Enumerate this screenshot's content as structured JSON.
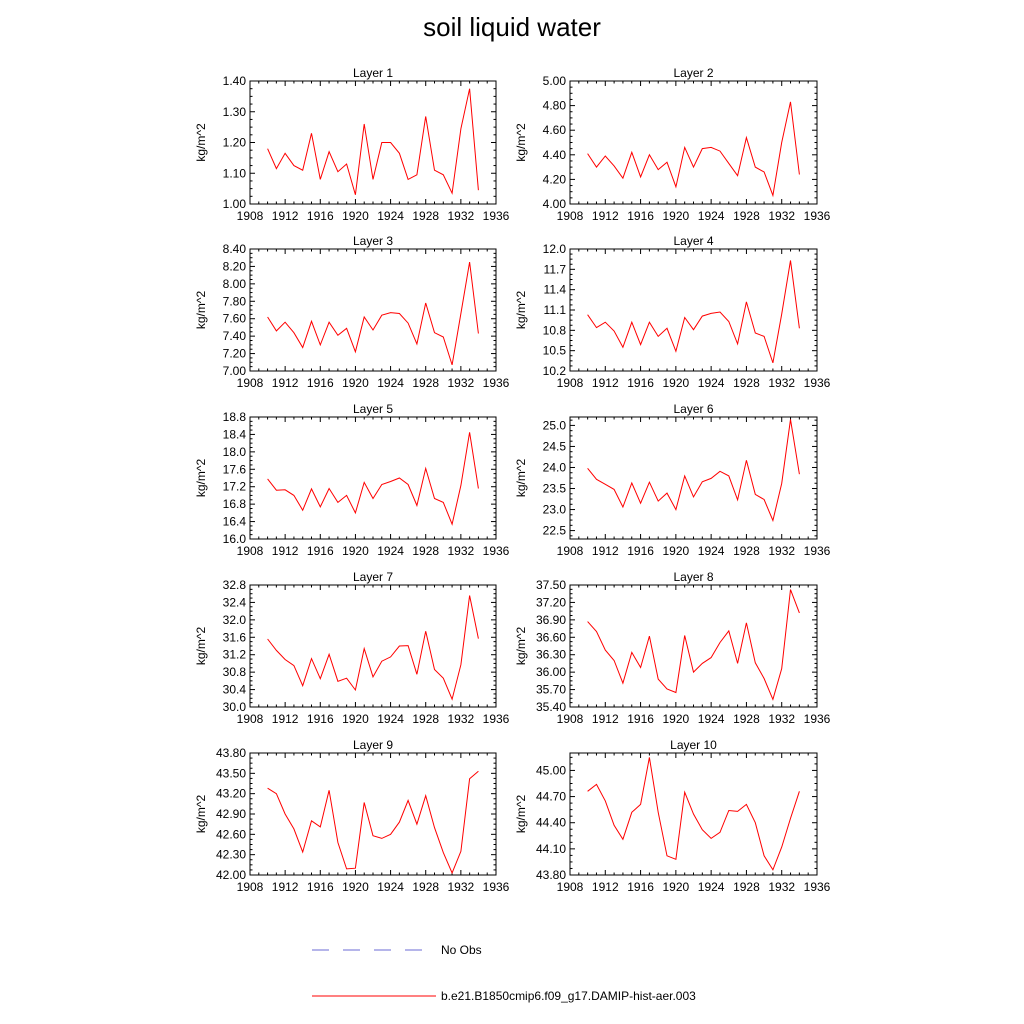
{
  "title": "soil liquid water",
  "legend": {
    "obs_label": "No Obs",
    "obs_color": "#6b6bd6",
    "model_label": "b.e21.B1850cmip6.f09_g17.DAMIP-hist-aer.003",
    "model_color": "#ff0000"
  },
  "chart_data": [
    {
      "type": "line",
      "title": "Layer 1",
      "ylabel": "kg/m^2",
      "xlim": [
        1908,
        1936
      ],
      "xticks": [
        "1908",
        "1912",
        "1916",
        "1920",
        "1924",
        "1928",
        "1932",
        "1936"
      ],
      "ylim": [
        1.0,
        1.4
      ],
      "yticks": [
        "1.00",
        "1.10",
        "1.20",
        "1.30",
        "1.40"
      ],
      "x": [
        1910,
        1911,
        1912,
        1913,
        1914,
        1915,
        1916,
        1917,
        1918,
        1919,
        1920,
        1921,
        1922,
        1923,
        1924,
        1925,
        1926,
        1927,
        1928,
        1929,
        1930,
        1931,
        1932,
        1933,
        1934
      ],
      "series": [
        {
          "values": [
            1.18,
            1.115,
            1.165,
            1.125,
            1.11,
            1.23,
            1.08,
            1.17,
            1.105,
            1.13,
            1.03,
            1.26,
            1.08,
            1.2,
            1.2,
            1.165,
            1.08,
            1.095,
            1.285,
            1.11,
            1.095,
            1.035,
            1.245,
            1.375,
            1.045
          ]
        }
      ]
    },
    {
      "type": "line",
      "title": "Layer 2",
      "ylabel": "kg/m^2",
      "xlim": [
        1908,
        1936
      ],
      "xticks": [
        "1908",
        "1912",
        "1916",
        "1920",
        "1924",
        "1928",
        "1932",
        "1936"
      ],
      "ylim": [
        4.0,
        5.0
      ],
      "yticks": [
        "4.00",
        "4.20",
        "4.40",
        "4.60",
        "4.80",
        "5.00"
      ],
      "x": [
        1910,
        1911,
        1912,
        1913,
        1914,
        1915,
        1916,
        1917,
        1918,
        1919,
        1920,
        1921,
        1922,
        1923,
        1924,
        1925,
        1926,
        1927,
        1928,
        1929,
        1930,
        1931,
        1932,
        1933,
        1934
      ],
      "series": [
        {
          "values": [
            4.41,
            4.3,
            4.39,
            4.31,
            4.21,
            4.42,
            4.22,
            4.4,
            4.28,
            4.34,
            4.14,
            4.46,
            4.3,
            4.45,
            4.46,
            4.43,
            4.33,
            4.23,
            4.54,
            4.3,
            4.26,
            4.07,
            4.5,
            4.83,
            4.24
          ]
        }
      ]
    },
    {
      "type": "line",
      "title": "Layer 3",
      "ylabel": "kg/m^2",
      "xlim": [
        1908,
        1936
      ],
      "xticks": [
        "1908",
        "1912",
        "1916",
        "1920",
        "1924",
        "1928",
        "1932",
        "1936"
      ],
      "ylim": [
        7.0,
        8.4
      ],
      "yticks": [
        "7.00",
        "7.20",
        "7.40",
        "7.60",
        "7.80",
        "8.00",
        "8.20",
        "8.40"
      ],
      "x": [
        1910,
        1911,
        1912,
        1913,
        1914,
        1915,
        1916,
        1917,
        1918,
        1919,
        1920,
        1921,
        1922,
        1923,
        1924,
        1925,
        1926,
        1927,
        1928,
        1929,
        1930,
        1931,
        1932,
        1933,
        1934
      ],
      "series": [
        {
          "values": [
            7.62,
            7.46,
            7.56,
            7.44,
            7.27,
            7.57,
            7.3,
            7.56,
            7.41,
            7.49,
            7.22,
            7.62,
            7.47,
            7.64,
            7.67,
            7.66,
            7.55,
            7.31,
            7.78,
            7.44,
            7.39,
            7.07,
            7.66,
            8.25,
            7.43
          ]
        }
      ]
    },
    {
      "type": "line",
      "title": "Layer 4",
      "ylabel": "kg/m^2",
      "xlim": [
        1908,
        1936
      ],
      "xticks": [
        "1908",
        "1912",
        "1916",
        "1920",
        "1924",
        "1928",
        "1932",
        "1936"
      ],
      "ylim": [
        10.2,
        12.0
      ],
      "yticks": [
        "10.2",
        "10.5",
        "10.8",
        "11.1",
        "11.4",
        "11.7",
        "12.0"
      ],
      "x": [
        1910,
        1911,
        1912,
        1913,
        1914,
        1915,
        1916,
        1917,
        1918,
        1919,
        1920,
        1921,
        1922,
        1923,
        1924,
        1925,
        1926,
        1927,
        1928,
        1929,
        1930,
        1931,
        1932,
        1933,
        1934
      ],
      "series": [
        {
          "values": [
            11.03,
            10.84,
            10.92,
            10.79,
            10.55,
            10.92,
            10.59,
            10.92,
            10.71,
            10.83,
            10.49,
            10.99,
            10.81,
            11.01,
            11.05,
            11.07,
            10.93,
            10.6,
            11.22,
            10.76,
            10.71,
            10.32,
            11.04,
            11.83,
            10.83
          ]
        }
      ]
    },
    {
      "type": "line",
      "title": "Layer 5",
      "ylabel": "kg/m^2",
      "xlim": [
        1908,
        1936
      ],
      "xticks": [
        "1908",
        "1912",
        "1916",
        "1920",
        "1924",
        "1928",
        "1932",
        "1936"
      ],
      "ylim": [
        16.0,
        18.8
      ],
      "yticks": [
        "16.0",
        "16.4",
        "16.8",
        "17.2",
        "17.6",
        "18.0",
        "18.4",
        "18.8"
      ],
      "x": [
        1910,
        1911,
        1912,
        1913,
        1914,
        1915,
        1916,
        1917,
        1918,
        1919,
        1920,
        1921,
        1922,
        1923,
        1924,
        1925,
        1926,
        1927,
        1928,
        1929,
        1930,
        1931,
        1932,
        1933,
        1934
      ],
      "series": [
        {
          "values": [
            17.38,
            17.12,
            17.13,
            17.0,
            16.66,
            17.15,
            16.74,
            17.16,
            16.84,
            17.0,
            16.6,
            17.3,
            16.93,
            17.25,
            17.32,
            17.4,
            17.25,
            16.77,
            17.62,
            16.93,
            16.84,
            16.34,
            17.23,
            18.45,
            17.16
          ]
        }
      ]
    },
    {
      "type": "line",
      "title": "Layer 6",
      "ylabel": "kg/m^2",
      "xlim": [
        1908,
        1936
      ],
      "xticks": [
        "1908",
        "1912",
        "1916",
        "1920",
        "1924",
        "1928",
        "1932",
        "1936"
      ],
      "ylim": [
        22.3,
        25.2
      ],
      "yticks": [
        "22.5",
        "23.0",
        "23.5",
        "24.0",
        "24.5",
        "25.0"
      ],
      "x": [
        1910,
        1911,
        1912,
        1913,
        1914,
        1915,
        1916,
        1917,
        1918,
        1919,
        1920,
        1921,
        1922,
        1923,
        1924,
        1925,
        1926,
        1927,
        1928,
        1929,
        1930,
        1931,
        1932,
        1933,
        1934
      ],
      "series": [
        {
          "values": [
            23.98,
            23.72,
            23.6,
            23.48,
            23.06,
            23.63,
            23.15,
            23.65,
            23.2,
            23.39,
            23.0,
            23.8,
            23.3,
            23.66,
            23.74,
            23.91,
            23.8,
            23.23,
            24.17,
            23.36,
            23.24,
            22.74,
            23.62,
            25.14,
            23.84
          ]
        }
      ]
    },
    {
      "type": "line",
      "title": "Layer 7",
      "ylabel": "kg/m^2",
      "xlim": [
        1908,
        1936
      ],
      "xticks": [
        "1908",
        "1912",
        "1916",
        "1920",
        "1924",
        "1928",
        "1932",
        "1936"
      ],
      "ylim": [
        30.0,
        32.8
      ],
      "yticks": [
        "30.0",
        "30.4",
        "30.8",
        "31.2",
        "31.6",
        "32.0",
        "32.4",
        "32.8"
      ],
      "x": [
        1910,
        1911,
        1912,
        1913,
        1914,
        1915,
        1916,
        1917,
        1918,
        1919,
        1920,
        1921,
        1922,
        1923,
        1924,
        1925,
        1926,
        1927,
        1928,
        1929,
        1930,
        1931,
        1932,
        1933,
        1934
      ],
      "series": [
        {
          "values": [
            31.56,
            31.3,
            31.09,
            30.95,
            30.49,
            31.11,
            30.65,
            31.21,
            30.59,
            30.66,
            30.39,
            31.34,
            30.69,
            31.05,
            31.15,
            31.4,
            31.41,
            30.75,
            31.74,
            30.86,
            30.66,
            30.18,
            30.97,
            32.56,
            31.57
          ]
        }
      ]
    },
    {
      "type": "line",
      "title": "Layer 8",
      "ylabel": "kg/m^2",
      "xlim": [
        1908,
        1936
      ],
      "xticks": [
        "1908",
        "1912",
        "1916",
        "1920",
        "1924",
        "1928",
        "1932",
        "1936"
      ],
      "ylim": [
        35.4,
        37.5
      ],
      "yticks": [
        "35.40",
        "35.70",
        "36.00",
        "36.30",
        "36.60",
        "36.90",
        "37.20",
        "37.50"
      ],
      "x": [
        1910,
        1911,
        1912,
        1913,
        1914,
        1915,
        1916,
        1917,
        1918,
        1919,
        1920,
        1921,
        1922,
        1923,
        1924,
        1925,
        1926,
        1927,
        1928,
        1929,
        1930,
        1931,
        1932,
        1933,
        1934
      ],
      "series": [
        {
          "values": [
            36.87,
            36.7,
            36.38,
            36.2,
            35.81,
            36.34,
            36.08,
            36.62,
            35.88,
            35.71,
            35.65,
            36.63,
            36.0,
            36.15,
            36.25,
            36.51,
            36.71,
            36.15,
            36.85,
            36.16,
            35.89,
            35.53,
            36.06,
            37.42,
            37.02
          ]
        }
      ]
    },
    {
      "type": "line",
      "title": "Layer 9",
      "ylabel": "kg/m^2",
      "xlim": [
        1908,
        1936
      ],
      "xticks": [
        "1908",
        "1912",
        "1916",
        "1920",
        "1924",
        "1928",
        "1932",
        "1936"
      ],
      "ylim": [
        42.0,
        43.8
      ],
      "yticks": [
        "42.00",
        "42.30",
        "42.60",
        "42.90",
        "43.20",
        "43.50",
        "43.80"
      ],
      "x": [
        1910,
        1911,
        1912,
        1913,
        1914,
        1915,
        1916,
        1917,
        1918,
        1919,
        1920,
        1921,
        1922,
        1923,
        1924,
        1925,
        1926,
        1927,
        1928,
        1929,
        1930,
        1931,
        1932,
        1933,
        1934
      ],
      "series": [
        {
          "values": [
            43.28,
            43.2,
            42.9,
            42.68,
            42.34,
            42.8,
            42.71,
            43.25,
            42.48,
            42.09,
            42.1,
            43.07,
            42.58,
            42.54,
            42.6,
            42.78,
            43.1,
            42.75,
            43.17,
            42.7,
            42.33,
            42.03,
            42.35,
            43.42,
            43.53
          ]
        }
      ]
    },
    {
      "type": "line",
      "title": "Layer 10",
      "ylabel": "kg/m^2",
      "xlim": [
        1908,
        1936
      ],
      "xticks": [
        "1908",
        "1912",
        "1916",
        "1920",
        "1924",
        "1928",
        "1932",
        "1936"
      ],
      "ylim": [
        43.8,
        45.2
      ],
      "yticks": [
        "43.80",
        "44.10",
        "44.40",
        "44.70",
        "45.00"
      ],
      "x": [
        1910,
        1911,
        1912,
        1913,
        1914,
        1915,
        1916,
        1917,
        1918,
        1919,
        1920,
        1921,
        1922,
        1923,
        1924,
        1925,
        1926,
        1927,
        1928,
        1929,
        1930,
        1931,
        1932,
        1933,
        1934
      ],
      "series": [
        {
          "values": [
            44.76,
            44.84,
            44.65,
            44.37,
            44.21,
            44.52,
            44.61,
            45.15,
            44.52,
            44.02,
            43.98,
            44.75,
            44.5,
            44.32,
            44.22,
            44.29,
            44.54,
            44.53,
            44.61,
            44.4,
            44.02,
            43.86,
            44.12,
            44.45,
            44.76
          ]
        }
      ]
    }
  ]
}
